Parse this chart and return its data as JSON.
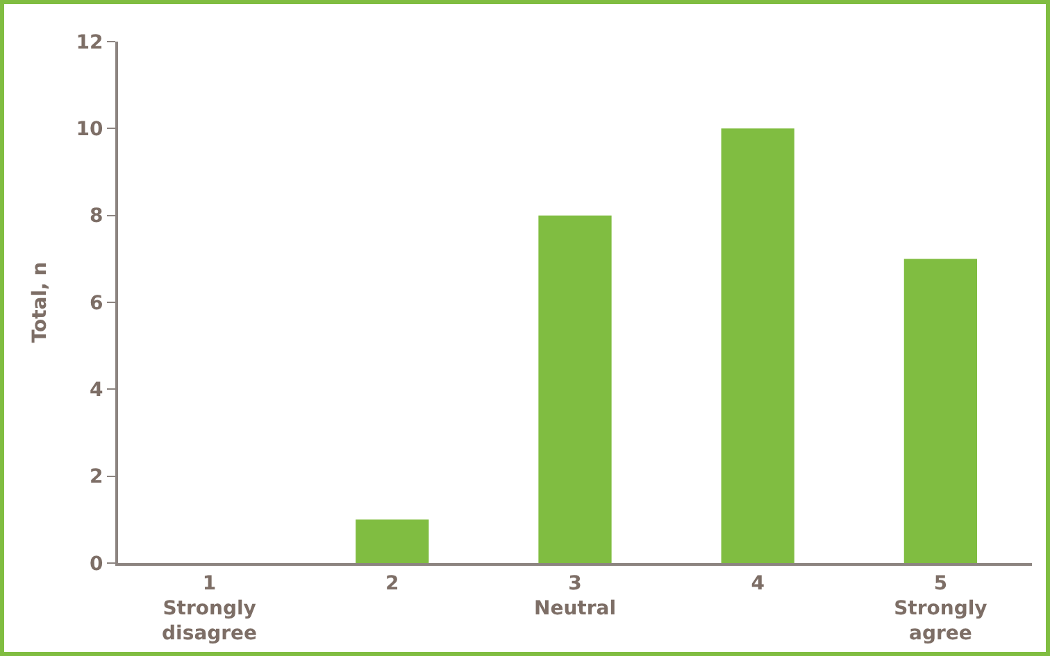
{
  "chart_data": {
    "type": "bar",
    "ylabel": "Total, n",
    "categories": [
      "1\nStrongly\ndisagree",
      "2",
      "3\nNeutral",
      "4",
      "5\nStrongly\nagree"
    ],
    "values": [
      0,
      1,
      8,
      10,
      7
    ],
    "color": "#80bd41",
    "ylim": [
      0,
      12
    ],
    "yticks": [
      0,
      2,
      4,
      6,
      8,
      10,
      12
    ],
    "grid": false,
    "legend": false
  }
}
